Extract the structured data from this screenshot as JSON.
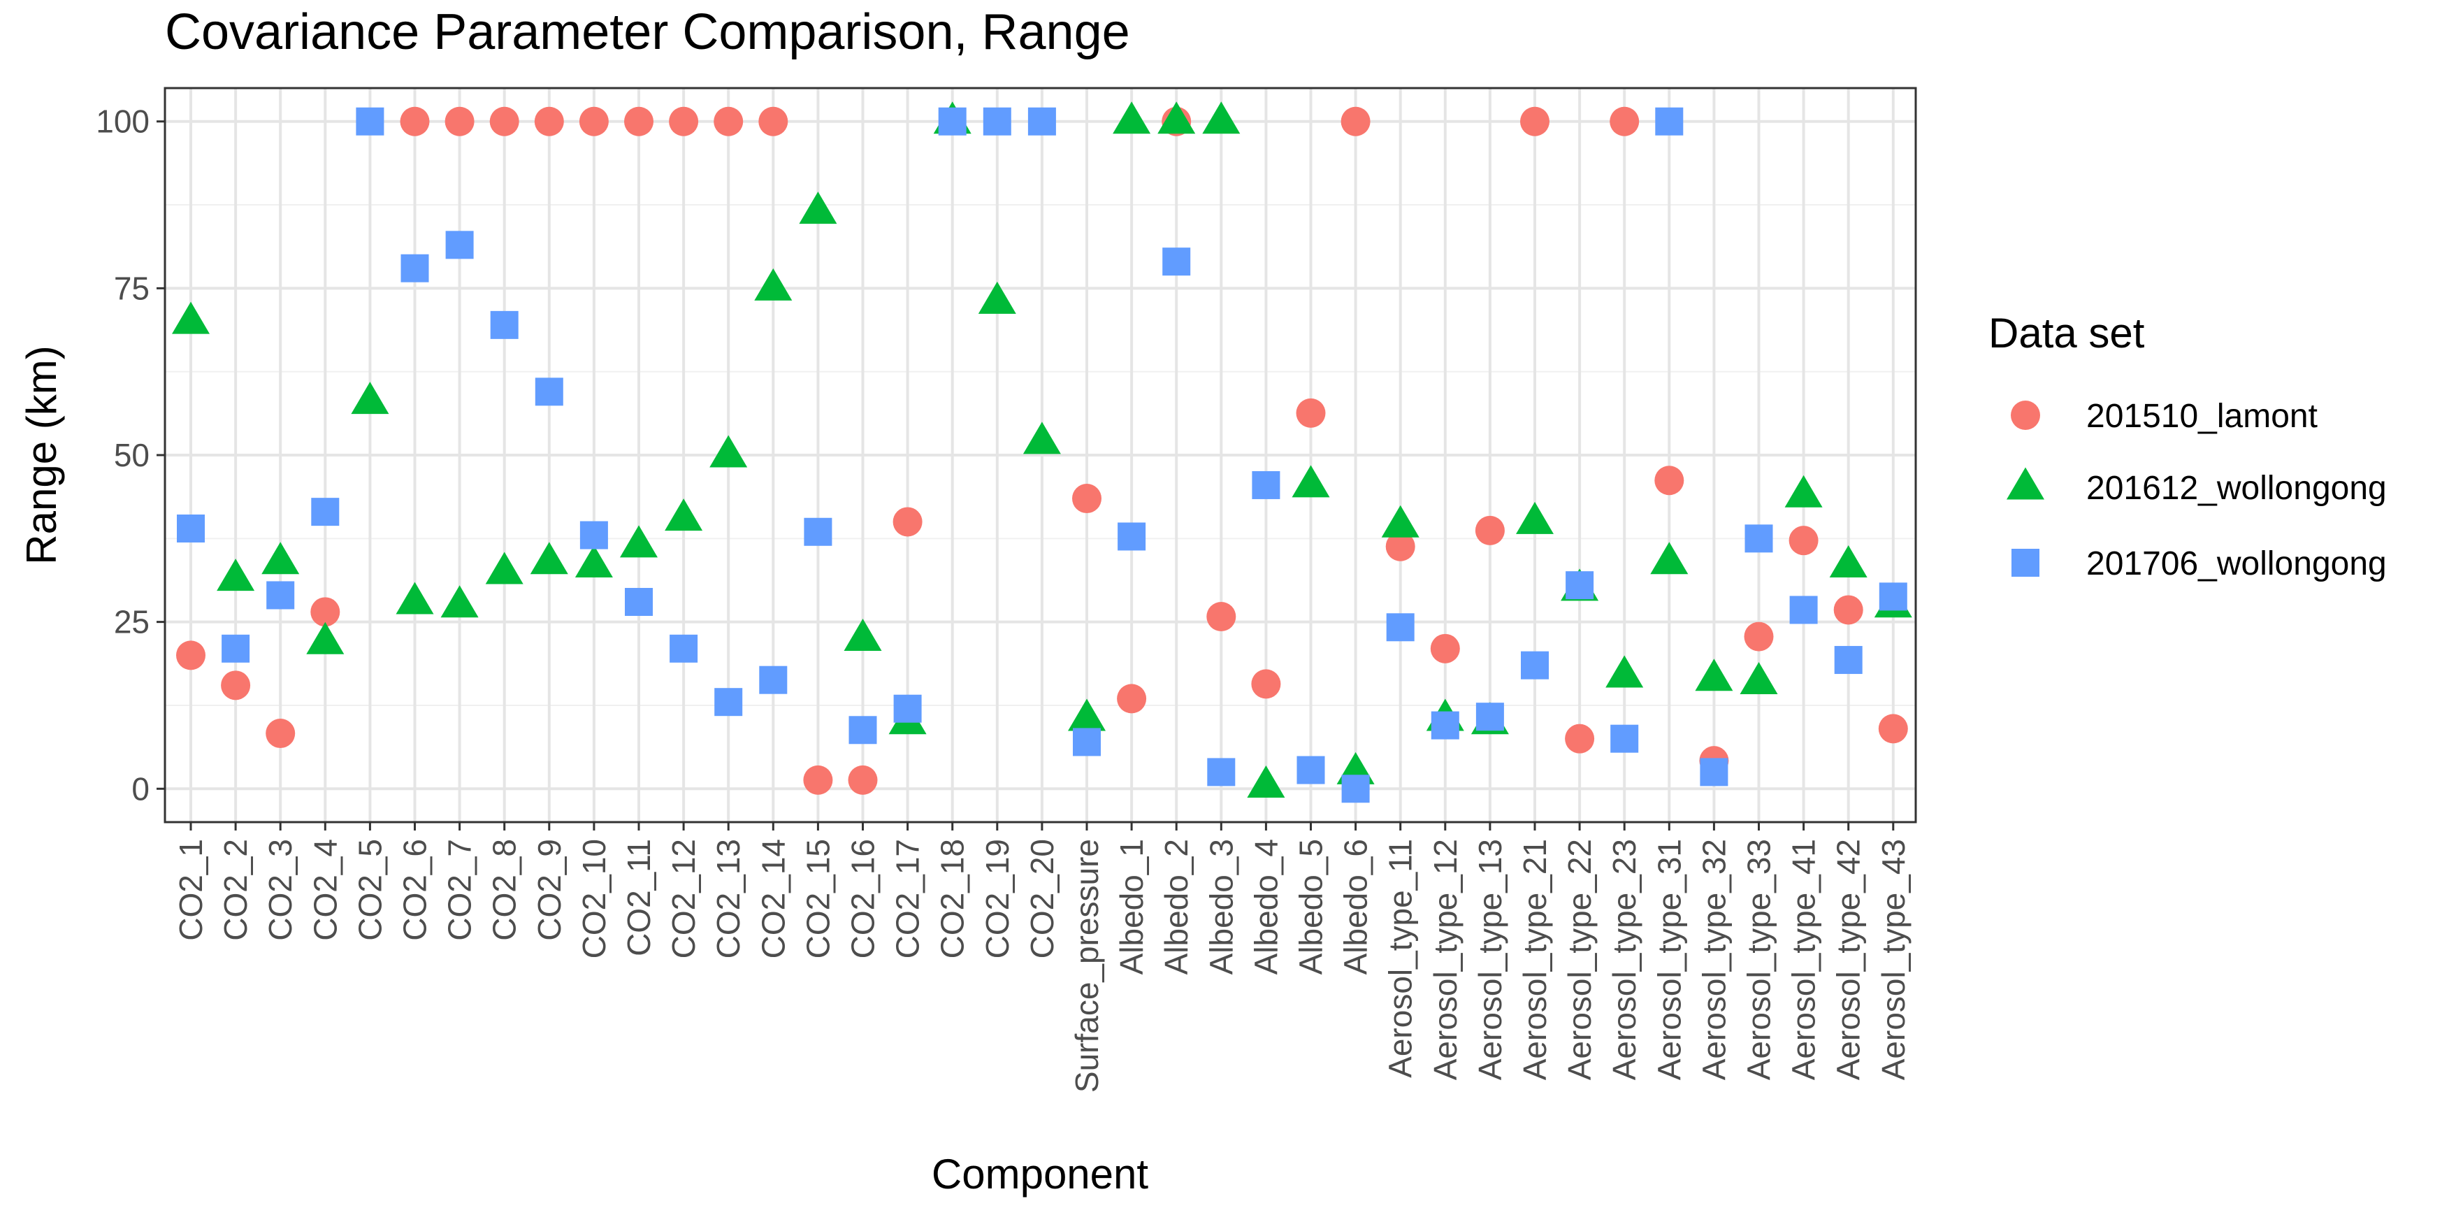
{
  "chart_data": {
    "type": "scatter",
    "title": "Covariance Parameter Comparison, Range",
    "xlabel": "Component",
    "ylabel": "Range (km)",
    "ylim": [
      -5,
      105
    ],
    "yticks": [
      0,
      25,
      50,
      75,
      100
    ],
    "grid": true,
    "legend": {
      "title": "Data set",
      "position": "right"
    },
    "categories": [
      "CO2_1",
      "CO2_2",
      "CO2_3",
      "CO2_4",
      "CO2_5",
      "CO2_6",
      "CO2_7",
      "CO2_8",
      "CO2_9",
      "CO2_10",
      "CO2_11",
      "CO2_12",
      "CO2_13",
      "CO2_14",
      "CO2_15",
      "CO2_16",
      "CO2_17",
      "CO2_18",
      "CO2_19",
      "CO2_20",
      "Surface_pressure",
      "Albedo_1",
      "Albedo_2",
      "Albedo_3",
      "Albedo_4",
      "Albedo_5",
      "Albedo_6",
      "Aerosol_type_11",
      "Aerosol_type_12",
      "Aerosol_type_13",
      "Aerosol_type_21",
      "Aerosol_type_22",
      "Aerosol_type_23",
      "Aerosol_type_31",
      "Aerosol_type_32",
      "Aerosol_type_33",
      "Aerosol_type_41",
      "Aerosol_type_42",
      "Aerosol_type_43"
    ],
    "series": [
      {
        "name": "201510_lamont",
        "shape": "circle",
        "color": "#F8766D",
        "values": [
          20,
          15.5,
          8.3,
          26.5,
          null,
          100,
          100,
          100,
          100,
          100,
          100,
          100,
          100,
          100,
          1.3,
          1.3,
          40,
          null,
          null,
          null,
          43.5,
          13.5,
          100,
          25.8,
          15.7,
          56.3,
          100,
          36.3,
          21,
          38.7,
          100,
          7.5,
          100,
          46.2,
          4.2,
          22.8,
          37.2,
          26.8,
          9
        ]
      },
      {
        "name": "201612_wollongong",
        "shape": "triangle",
        "color": "#00BA38",
        "values": [
          70,
          31.5,
          34,
          22,
          58,
          28,
          27.5,
          32.5,
          34,
          33.5,
          36.5,
          40.5,
          50,
          75,
          86.5,
          22.5,
          10,
          100,
          73,
          52,
          10.5,
          100,
          100,
          100,
          0.5,
          45.5,
          2.5,
          39.5,
          10.5,
          10,
          40,
          30,
          17,
          34,
          16.5,
          16,
          44,
          33.5,
          27.5
        ]
      },
      {
        "name": "201706_wollongong",
        "shape": "square",
        "color": "#619CFF",
        "values": [
          39,
          21,
          29,
          41.5,
          100,
          78,
          81.5,
          69.5,
          59.5,
          38,
          28,
          21,
          13,
          16.3,
          38.5,
          8.8,
          12,
          100,
          100,
          100,
          7,
          37.8,
          79,
          2.5,
          45.5,
          2.8,
          0,
          24.2,
          9.5,
          10.8,
          18.5,
          30.5,
          7.5,
          100,
          2.5,
          37.5,
          26.8,
          19.3,
          28.8
        ]
      }
    ]
  }
}
